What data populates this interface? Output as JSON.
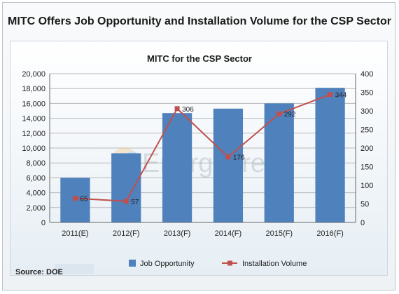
{
  "page_title": "MITC Offers Job Opportunity and Installation Volume for the CSP Sector",
  "watermark": "EnergyTrend",
  "source": "Source: DOE",
  "colors": {
    "bar": "#4f81bd",
    "line": "#c0504d",
    "grid": "#b8b8b8"
  },
  "chart_data": {
    "type": "bar",
    "title": "MITC for the CSP Sector",
    "categories": [
      "2011(E)",
      "2012(F)",
      "2013(F)",
      "2014(F)",
      "2015(F)",
      "2016(F)"
    ],
    "series": [
      {
        "name": "Job Opportunity",
        "type": "bar",
        "axis": "left",
        "values": [
          6000,
          9300,
          14700,
          15300,
          16000,
          18100
        ]
      },
      {
        "name": "Installation Volume",
        "type": "line",
        "axis": "right",
        "values": [
          65,
          57,
          306,
          176,
          292,
          344
        ]
      }
    ],
    "ylim_left": [
      0,
      20000
    ],
    "ylim_right": [
      0,
      400
    ],
    "yticks_left": [
      "0",
      "2,000",
      "4,000",
      "6,000",
      "8,000",
      "10,000",
      "12,000",
      "14,000",
      "16,000",
      "18,000",
      "20,000"
    ],
    "yticks_right": [
      "0",
      "50",
      "100",
      "150",
      "200",
      "250",
      "300",
      "350",
      "400"
    ],
    "data_labels": [
      "65",
      "57",
      "306",
      "176",
      "292",
      "344"
    ],
    "grid": true,
    "legend_position": "bottom"
  }
}
